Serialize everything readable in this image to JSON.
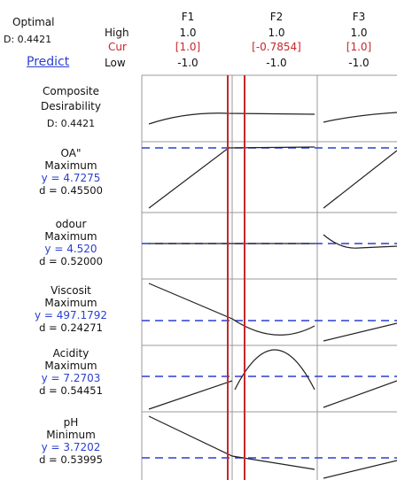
{
  "header": {
    "optimal": "Optimal",
    "d": "D: 0.4421",
    "predict": "Predict",
    "levels": [
      "High",
      "Cur",
      "Low"
    ]
  },
  "factors": [
    {
      "name": "F1",
      "high": "1.0",
      "cur": "[1.0]",
      "low": "-1.0"
    },
    {
      "name": "F2",
      "high": "1.0",
      "cur": "[-0.7854]",
      "low": "-1.0"
    },
    {
      "name": "F3",
      "high": "1.0",
      "cur": "[1.0]",
      "low": "-1.0"
    }
  ],
  "responses": [
    {
      "name": "Composite Desirability",
      "d": "D: 0.4421"
    },
    {
      "name": "OA\"",
      "goal": "Maximum",
      "y": "y = 4.7275",
      "d": "d = 0.45500"
    },
    {
      "name": "odour",
      "goal": "Maximum",
      "y": "y = 4.520",
      "d": "d = 0.52000"
    },
    {
      "name": "Viscosit",
      "goal": "Maximum",
      "y": "y = 497.1792",
      "d": "d = 0.24271"
    },
    {
      "name": "Acidity",
      "goal": "Maximum",
      "y": "y = 7.2703",
      "d": "d = 0.54451"
    },
    {
      "name": "pH",
      "goal": "Minimum",
      "y": "y = 3.7202",
      "d": "d = 0.53995"
    }
  ]
}
